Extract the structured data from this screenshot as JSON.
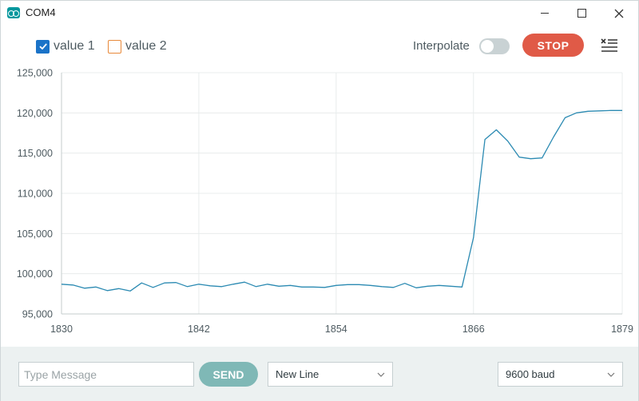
{
  "window": {
    "title": "COM4"
  },
  "toolbar": {
    "legend": [
      {
        "label": "value 1",
        "checked": true,
        "color": "#1a73c8"
      },
      {
        "label": "value 2",
        "checked": false,
        "color": "#e8893a"
      }
    ],
    "interpolate_label": "Interpolate",
    "interpolate_on": false,
    "stop_label": "STOP",
    "stop_color": "#e05a47"
  },
  "chart_data": {
    "type": "line",
    "x_ticks": [
      "1830",
      "1842",
      "1854",
      "1866",
      "1879"
    ],
    "y_ticks": [
      "125,000",
      "120,000",
      "115,000",
      "110,000",
      "105,000",
      "100,000",
      "95,000"
    ],
    "xlim": [
      1830,
      1879
    ],
    "ylim": [
      95000,
      125000
    ],
    "grid": true,
    "series": [
      {
        "color": "#2b8ab2",
        "x": [
          1830,
          1831,
          1832,
          1833,
          1834,
          1835,
          1836,
          1837,
          1838,
          1839,
          1840,
          1841,
          1842,
          1843,
          1844,
          1845,
          1846,
          1847,
          1848,
          1849,
          1850,
          1851,
          1852,
          1853,
          1854,
          1855,
          1856,
          1857,
          1858,
          1859,
          1860,
          1861,
          1862,
          1863,
          1864,
          1865,
          1866,
          1867,
          1868,
          1869,
          1870,
          1871,
          1872,
          1873,
          1874,
          1875,
          1876,
          1877,
          1878,
          1879
        ],
        "values": [
          98700,
          98600,
          98200,
          98350,
          97900,
          98150,
          97850,
          98850,
          98300,
          98850,
          98900,
          98400,
          98700,
          98500,
          98400,
          98700,
          98950,
          98400,
          98700,
          98450,
          98550,
          98350,
          98350,
          98300,
          98550,
          98650,
          98650,
          98550,
          98400,
          98300,
          98800,
          98250,
          98450,
          98550,
          98450,
          98350,
          104500,
          116700,
          117900,
          116500,
          114500,
          114300,
          114400,
          117000,
          119400,
          120000,
          120200,
          120250,
          120300,
          120300
        ]
      }
    ]
  },
  "bottom": {
    "message_placeholder": "Type Message",
    "send_label": "SEND",
    "line_ending": "New Line",
    "baud": "9600 baud"
  }
}
